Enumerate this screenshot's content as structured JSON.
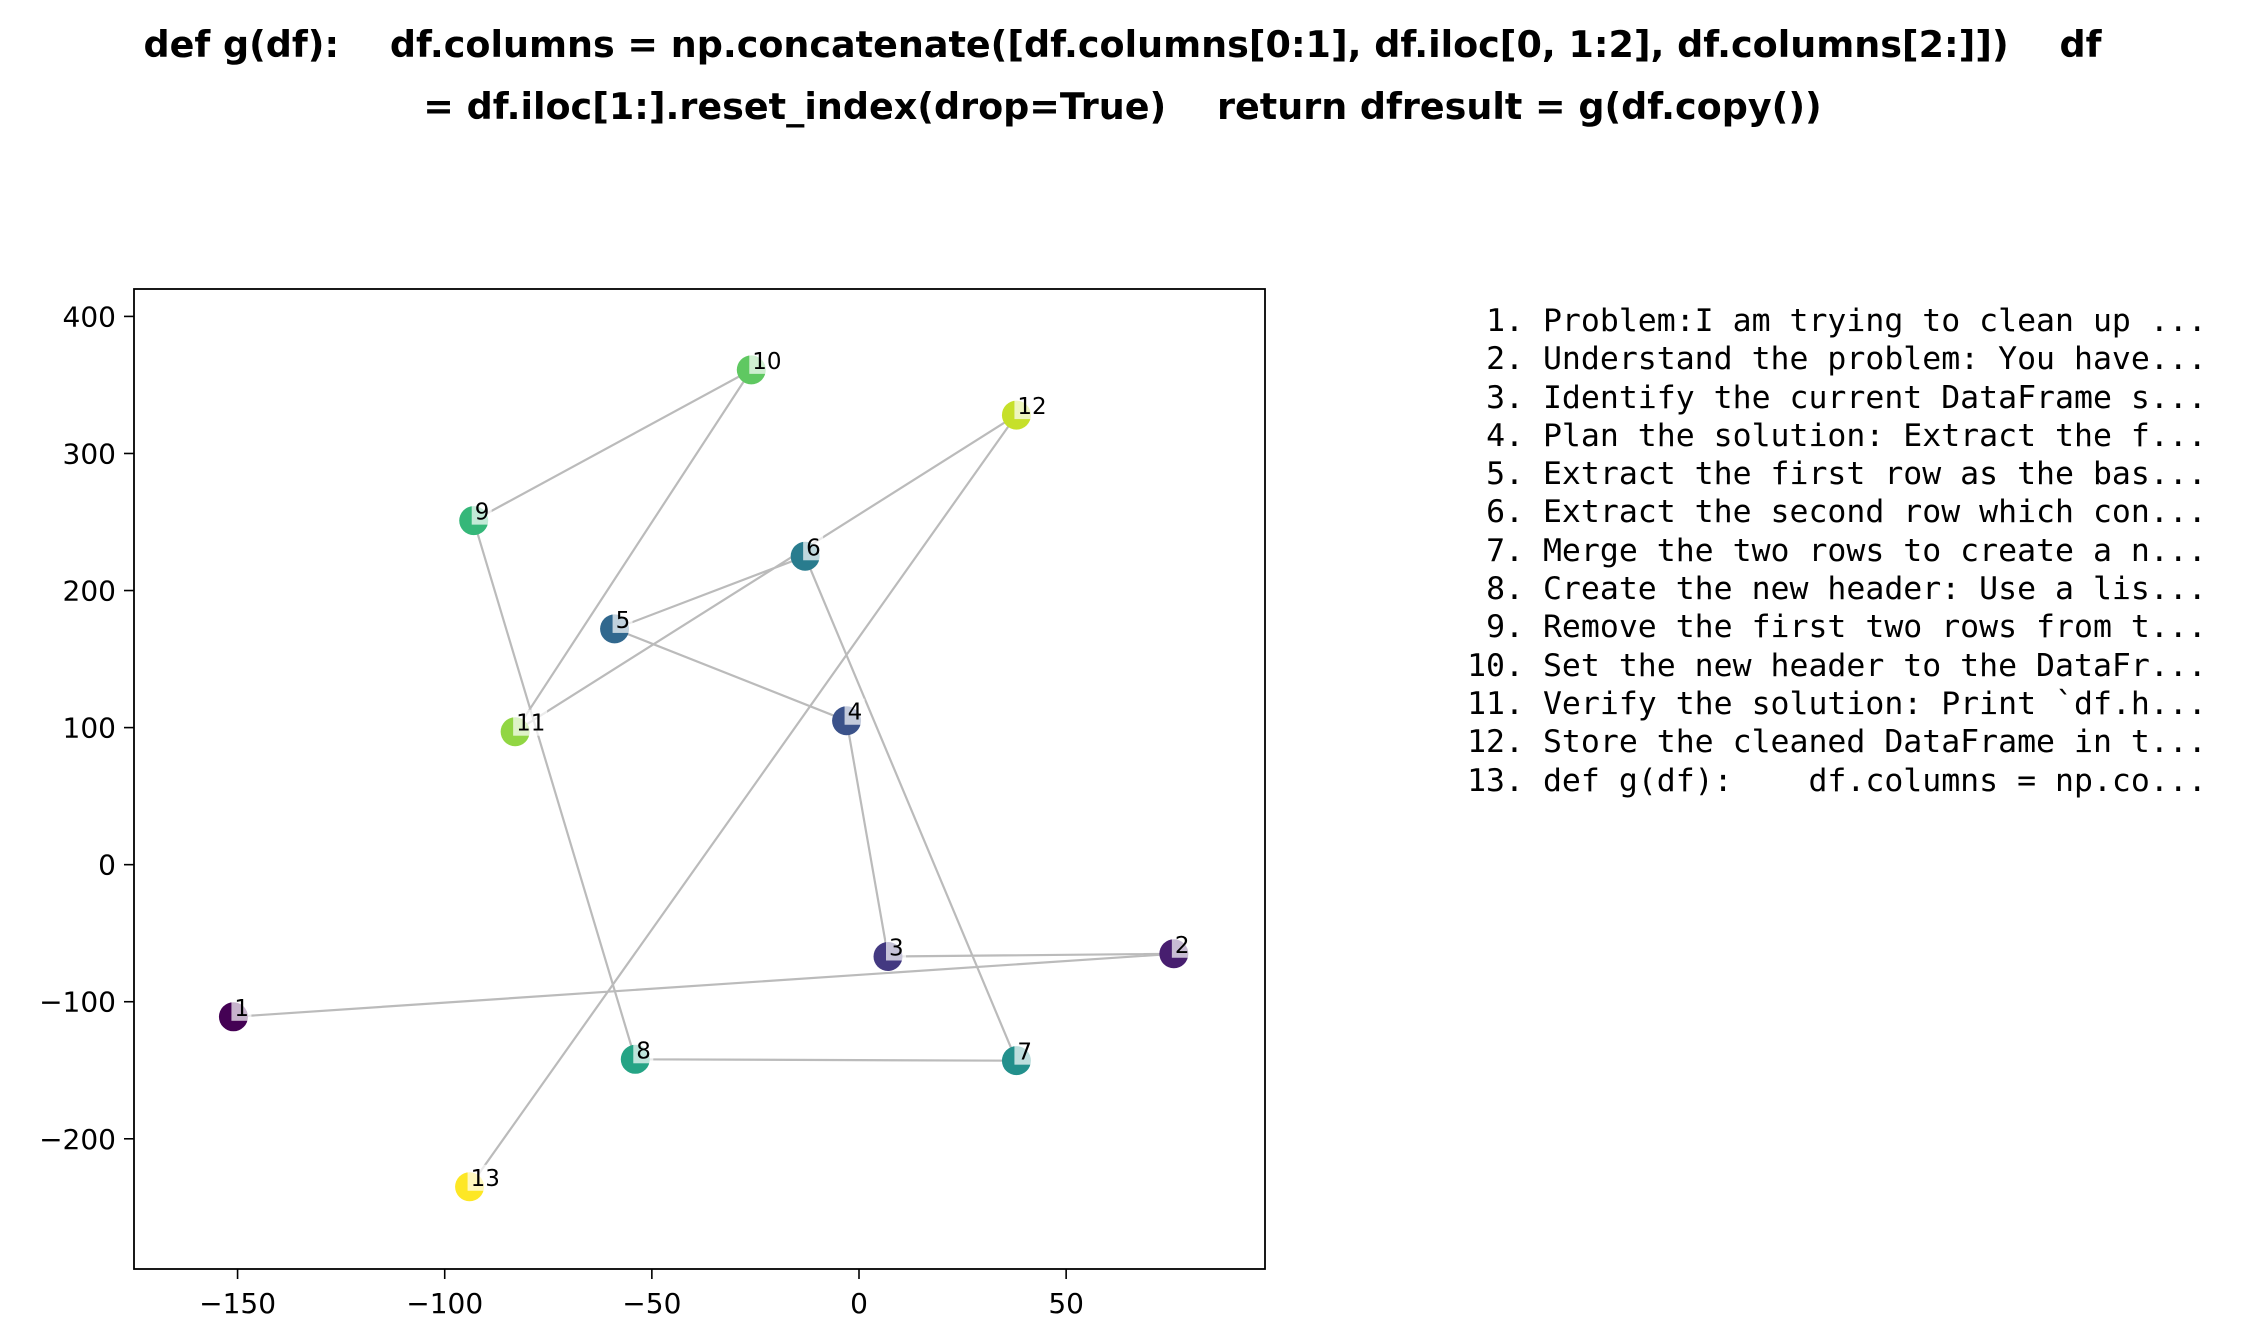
{
  "title": {
    "line1": "def g(df):    df.columns = np.concatenate([df.columns[0:1], df.iloc[0, 1:2], df.columns[2:]])    df",
    "line2": "= df.iloc[1:].reset_index(drop=True)    return dfresult = g(df.copy())"
  },
  "chart_data": {
    "type": "scatter",
    "title": "def g(df):    df.columns = np.concatenate([df.columns[0:1], df.iloc[0, 1:2], df.columns[2:]])    df = df.iloc[1:].reset_index(drop=True)    return dfresult = g(df.copy())",
    "xlabel": "",
    "ylabel": "",
    "xlim": [
      -175,
      98
    ],
    "ylim": [
      -295,
      420
    ],
    "xticks": [
      -150,
      -100,
      -50,
      0,
      50
    ],
    "yticks": [
      -200,
      -100,
      0,
      100,
      200,
      300,
      400
    ],
    "xtick_labels": [
      "−150",
      "−100",
      "−50",
      "0",
      "50"
    ],
    "ytick_labels": [
      "−200",
      "−100",
      "0",
      "100",
      "200",
      "300",
      "400"
    ],
    "grid": false,
    "connected_in_order": true,
    "colormap": "viridis",
    "line_color": "#bbbbbb",
    "points": [
      {
        "label": "1",
        "x": -151,
        "y": -111
      },
      {
        "label": "2",
        "x": 76,
        "y": -65
      },
      {
        "label": "3",
        "x": 7,
        "y": -67
      },
      {
        "label": "4",
        "x": -3,
        "y": 105
      },
      {
        "label": "5",
        "x": -59,
        "y": 172
      },
      {
        "label": "6",
        "x": -13,
        "y": 225
      },
      {
        "label": "7",
        "x": 38,
        "y": -143
      },
      {
        "label": "8",
        "x": -54,
        "y": -142
      },
      {
        "label": "9",
        "x": -93,
        "y": 251
      },
      {
        "label": "10",
        "x": -26,
        "y": 361
      },
      {
        "label": "11",
        "x": -83,
        "y": 97
      },
      {
        "label": "12",
        "x": 38,
        "y": 328
      },
      {
        "label": "13",
        "x": -94,
        "y": -235
      }
    ]
  },
  "steps": [
    {
      "num": "1.",
      "text": "Problem:I am trying to clean up ..."
    },
    {
      "num": "2.",
      "text": "Understand the problem: You have..."
    },
    {
      "num": "3.",
      "text": "Identify the current DataFrame s..."
    },
    {
      "num": "4.",
      "text": "Plan the solution: Extract the f..."
    },
    {
      "num": "5.",
      "text": "Extract the first row as the bas..."
    },
    {
      "num": "6.",
      "text": "Extract the second row which con..."
    },
    {
      "num": "7.",
      "text": "Merge the two rows to create a n..."
    },
    {
      "num": "8.",
      "text": "Create the new header: Use a lis..."
    },
    {
      "num": "9.",
      "text": "Remove the first two rows from t..."
    },
    {
      "num": "10.",
      "text": "Set the new header to the DataFr..."
    },
    {
      "num": "11.",
      "text": "Verify the solution: Print `df.h..."
    },
    {
      "num": "12.",
      "text": "Store the cleaned DataFrame in t..."
    },
    {
      "num": "13.",
      "text": "def g(df):    df.columns = np.co..."
    }
  ]
}
